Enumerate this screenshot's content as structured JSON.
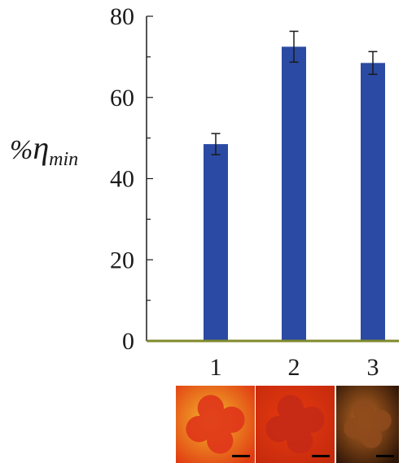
{
  "chart_data": {
    "type": "bar",
    "title": "",
    "xlabel": "",
    "ylabel": {
      "prefix": "%",
      "symbol": "η",
      "subscript": "min"
    },
    "categories": [
      "1",
      "2",
      "3"
    ],
    "values": [
      48.5,
      72.5,
      68.5
    ],
    "errors": [
      2.6,
      3.8,
      2.8
    ],
    "yticks": [
      0,
      20,
      40,
      60,
      80
    ],
    "ylim": [
      0,
      80
    ],
    "grid": false,
    "colors": {
      "bar": "#2b4aa3",
      "axis": "#1a1a1a",
      "baseline": "#7f8a2c"
    },
    "images": [
      {
        "category": "1",
        "icon": "clover-stain-image",
        "bg": "#f4b82c",
        "bg_edge": "#e03a12",
        "shape": "#e0361a"
      },
      {
        "category": "2",
        "icon": "clover-stain-image",
        "bg": "#e83a10",
        "bg_edge": "#c42a0c",
        "shape": "#c52a16"
      },
      {
        "category": "3",
        "icon": "clover-stain-image",
        "bg": "#c06a24",
        "bg_edge": "#2c1406",
        "shape": "#8e4a1c"
      }
    ]
  }
}
